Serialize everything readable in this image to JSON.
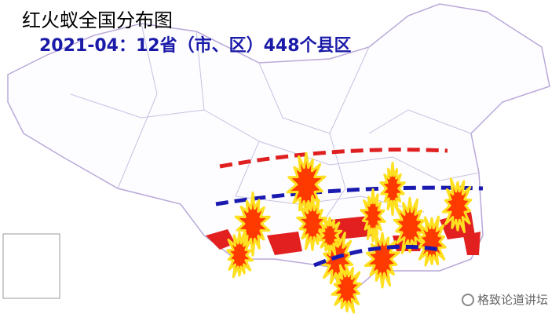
{
  "header": {
    "title": "红火蚁全国分布图",
    "subtitle": "2021-04：12省（市、区）448个县区"
  },
  "watermark": {
    "text": "格致论道讲坛"
  }
}
